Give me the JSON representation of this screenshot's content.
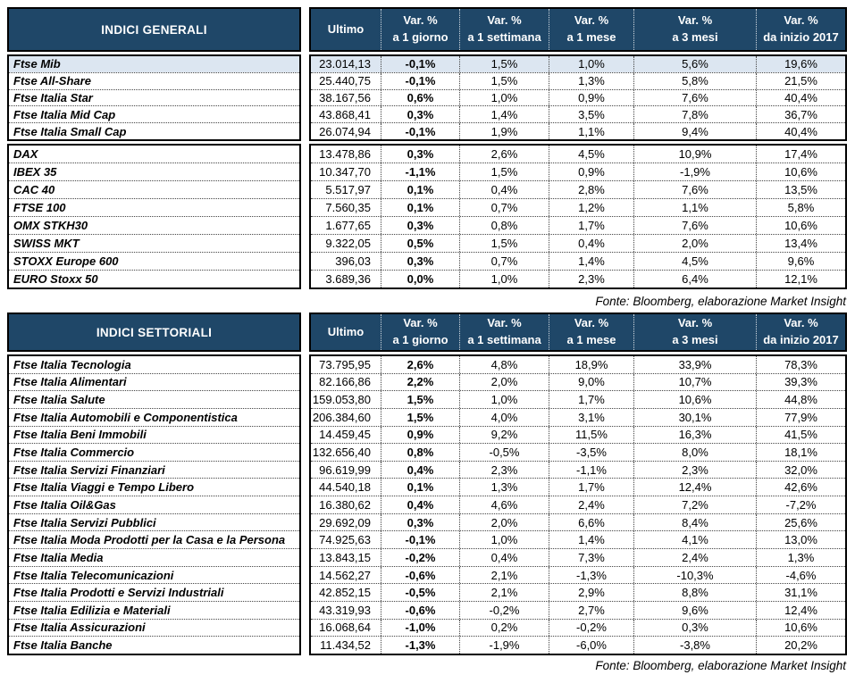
{
  "colors": {
    "header_bg": "#1F4768",
    "highlight_row_bg": "#DCE6F1",
    "border": "#000000"
  },
  "columns": {
    "ultimo_label": "Ultimo",
    "var_columns": [
      {
        "line1": "Var. %",
        "line2": "a 1 giorno"
      },
      {
        "line1": "Var. %",
        "line2": "a 1 settimana"
      },
      {
        "line1": "Var. %",
        "line2": "a 1 mese"
      },
      {
        "line1": "Var. %",
        "line2": "a 3 mesi"
      },
      {
        "line1": "Var. %",
        "line2": "da inizio 2017"
      }
    ]
  },
  "tables": [
    {
      "title": "INDICI GENERALI",
      "fonte": "Fonte: Bloomberg, elaborazione Market Insight",
      "sections": [
        {
          "rows": [
            {
              "label": "Ftse Mib",
              "ultimo": "23.014,13",
              "vars": [
                "-0,1%",
                "1,5%",
                "1,0%",
                "5,6%",
                "19,6%"
              ],
              "highlight": true
            },
            {
              "label": "Ftse All-Share",
              "ultimo": "25.440,75",
              "vars": [
                "-0,1%",
                "1,5%",
                "1,3%",
                "5,8%",
                "21,5%"
              ],
              "highlight": false
            },
            {
              "label": "Ftse Italia Star",
              "ultimo": "38.167,56",
              "vars": [
                "0,6%",
                "1,0%",
                "0,9%",
                "7,6%",
                "40,4%"
              ],
              "highlight": false
            },
            {
              "label": "Ftse Italia Mid Cap",
              "ultimo": "43.868,41",
              "vars": [
                "0,3%",
                "1,4%",
                "3,5%",
                "7,8%",
                "36,7%"
              ],
              "highlight": false
            },
            {
              "label": "Ftse Italia Small Cap",
              "ultimo": "26.074,94",
              "vars": [
                "-0,1%",
                "1,9%",
                "1,1%",
                "9,4%",
                "40,4%"
              ],
              "highlight": false
            }
          ]
        },
        {
          "rows": [
            {
              "label": "DAX",
              "ultimo": "13.478,86",
              "vars": [
                "0,3%",
                "2,6%",
                "4,5%",
                "10,9%",
                "17,4%"
              ],
              "highlight": false
            },
            {
              "label": "IBEX 35",
              "ultimo": "10.347,70",
              "vars": [
                "-1,1%",
                "1,5%",
                "0,9%",
                "-1,9%",
                "10,6%"
              ],
              "highlight": false
            },
            {
              "label": "CAC 40",
              "ultimo": "5.517,97",
              "vars": [
                "0,1%",
                "0,4%",
                "2,8%",
                "7,6%",
                "13,5%"
              ],
              "highlight": false
            },
            {
              "label": "FTSE 100",
              "ultimo": "7.560,35",
              "vars": [
                "0,1%",
                "0,7%",
                "1,2%",
                "1,1%",
                "5,8%"
              ],
              "highlight": false
            },
            {
              "label": "OMX STKH30",
              "ultimo": "1.677,65",
              "vars": [
                "0,3%",
                "0,8%",
                "1,7%",
                "7,6%",
                "10,6%"
              ],
              "highlight": false
            },
            {
              "label": "SWISS MKT",
              "ultimo": "9.322,05",
              "vars": [
                "0,5%",
                "1,5%",
                "0,4%",
                "2,0%",
                "13,4%"
              ],
              "highlight": false
            },
            {
              "label": "STOXX Europe 600",
              "ultimo": "396,03",
              "vars": [
                "0,3%",
                "0,7%",
                "1,4%",
                "4,5%",
                "9,6%"
              ],
              "highlight": false
            },
            {
              "label": "EURO Stoxx 50",
              "ultimo": "3.689,36",
              "vars": [
                "0,0%",
                "1,0%",
                "2,3%",
                "6,4%",
                "12,1%"
              ],
              "highlight": false
            }
          ]
        }
      ]
    },
    {
      "title": "INDICI SETTORIALI",
      "fonte": "Fonte: Bloomberg, elaborazione Market Insight",
      "sections": [
        {
          "rows": [
            {
              "label": "Ftse Italia Tecnologia",
              "ultimo": "73.795,95",
              "vars": [
                "2,6%",
                "4,8%",
                "18,9%",
                "33,9%",
                "78,3%"
              ],
              "highlight": false
            },
            {
              "label": "Ftse Italia Alimentari",
              "ultimo": "82.166,86",
              "vars": [
                "2,2%",
                "2,0%",
                "9,0%",
                "10,7%",
                "39,3%"
              ],
              "highlight": false
            },
            {
              "label": "Ftse Italia Salute",
              "ultimo": "159.053,80",
              "vars": [
                "1,5%",
                "1,0%",
                "1,7%",
                "10,6%",
                "44,8%"
              ],
              "highlight": false
            },
            {
              "label": "Ftse Italia Automobili e Componentistica",
              "ultimo": "206.384,60",
              "vars": [
                "1,5%",
                "4,0%",
                "3,1%",
                "30,1%",
                "77,9%"
              ],
              "highlight": false
            },
            {
              "label": "Ftse Italia Beni Immobili",
              "ultimo": "14.459,45",
              "vars": [
                "0,9%",
                "9,2%",
                "11,5%",
                "16,3%",
                "41,5%"
              ],
              "highlight": false
            },
            {
              "label": "Ftse Italia Commercio",
              "ultimo": "132.656,40",
              "vars": [
                "0,8%",
                "-0,5%",
                "-3,5%",
                "8,0%",
                "18,1%"
              ],
              "highlight": false
            },
            {
              "label": "Ftse Italia Servizi Finanziari",
              "ultimo": "96.619,99",
              "vars": [
                "0,4%",
                "2,3%",
                "-1,1%",
                "2,3%",
                "32,0%"
              ],
              "highlight": false
            },
            {
              "label": "Ftse Italia Viaggi e Tempo Libero",
              "ultimo": "44.540,18",
              "vars": [
                "0,1%",
                "1,3%",
                "1,7%",
                "12,4%",
                "42,6%"
              ],
              "highlight": false
            },
            {
              "label": "Ftse Italia Oil&Gas",
              "ultimo": "16.380,62",
              "vars": [
                "0,4%",
                "4,6%",
                "2,4%",
                "7,2%",
                "-7,2%"
              ],
              "highlight": false
            },
            {
              "label": "Ftse Italia Servizi Pubblici",
              "ultimo": "29.692,09",
              "vars": [
                "0,3%",
                "2,0%",
                "6,6%",
                "8,4%",
                "25,6%"
              ],
              "highlight": false
            },
            {
              "label": "Ftse Italia Moda Prodotti per la Casa e la Persona",
              "ultimo": "74.925,63",
              "vars": [
                "-0,1%",
                "1,0%",
                "1,4%",
                "4,1%",
                "13,0%"
              ],
              "highlight": false
            },
            {
              "label": "Ftse Italia Media",
              "ultimo": "13.843,15",
              "vars": [
                "-0,2%",
                "0,4%",
                "7,3%",
                "2,4%",
                "1,3%"
              ],
              "highlight": false
            },
            {
              "label": "Ftse Italia Telecomunicazioni",
              "ultimo": "14.562,27",
              "vars": [
                "-0,6%",
                "2,1%",
                "-1,3%",
                "-10,3%",
                "-4,6%"
              ],
              "highlight": false
            },
            {
              "label": "Ftse Italia Prodotti e Servizi Industriali",
              "ultimo": "42.852,15",
              "vars": [
                "-0,5%",
                "2,1%",
                "2,9%",
                "8,8%",
                "31,1%"
              ],
              "highlight": false
            },
            {
              "label": "Ftse Italia Edilizia e Materiali",
              "ultimo": "43.319,93",
              "vars": [
                "-0,6%",
                "-0,2%",
                "2,7%",
                "9,6%",
                "12,4%"
              ],
              "highlight": false
            },
            {
              "label": "Ftse Italia Assicurazioni",
              "ultimo": "16.068,64",
              "vars": [
                "-1,0%",
                "0,2%",
                "-0,2%",
                "0,3%",
                "10,6%"
              ],
              "highlight": false
            },
            {
              "label": "Ftse Italia Banche",
              "ultimo": "11.434,52",
              "vars": [
                "-1,3%",
                "-1,9%",
                "-6,0%",
                "-3,8%",
                "20,2%"
              ],
              "highlight": false
            }
          ]
        }
      ]
    }
  ]
}
